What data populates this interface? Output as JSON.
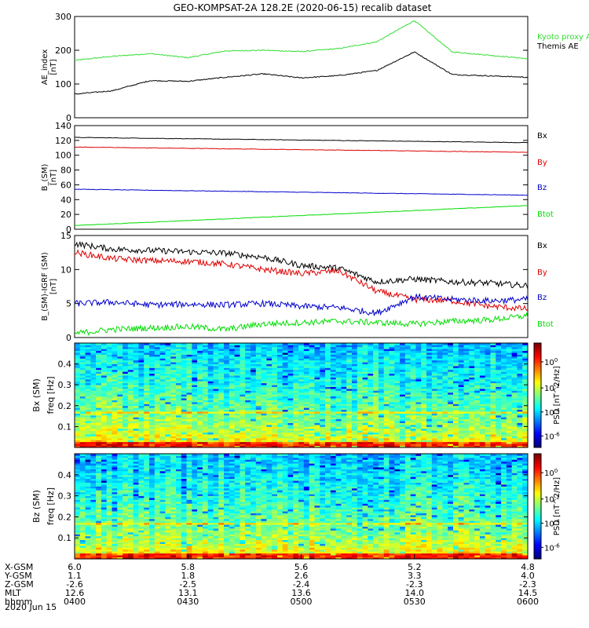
{
  "figure": {
    "title": "GEO-KOMPSAT-2A 128.2E (2020-06-15) recalib dataset",
    "date_label": "2020 Jun 15"
  },
  "colors": {
    "black": "#000000",
    "red": "#dd0000",
    "green": "#00dd00",
    "blue": "#0000cc",
    "ae_green": "#33dd33"
  },
  "chart_data": [
    {
      "type": "line",
      "panel": "ae",
      "ylabel": "AE_index",
      "yunit": "[nT]",
      "ylim": [
        0,
        300
      ],
      "yticks": [
        0,
        100,
        200,
        300
      ],
      "x": [
        "0400",
        "0410",
        "0420",
        "0430",
        "0440",
        "0450",
        "0500",
        "0510",
        "0520",
        "0530",
        "0540",
        "0550",
        "0600"
      ],
      "series": [
        {
          "name": "Kyoto proxy AE",
          "color_key": "ae_green",
          "values": [
            170,
            182,
            190,
            178,
            198,
            200,
            196,
            205,
            225,
            288,
            195,
            185,
            175
          ]
        },
        {
          "name": "Themis AE",
          "color_key": "black",
          "values": [
            70,
            80,
            110,
            108,
            120,
            130,
            118,
            125,
            140,
            195,
            128,
            124,
            120
          ]
        }
      ]
    },
    {
      "type": "line",
      "panel": "b_sm",
      "ylabel": "B_(SM)",
      "yunit": "[nT]",
      "ylim": [
        0,
        140
      ],
      "yticks": [
        0,
        20,
        40,
        60,
        80,
        100,
        120,
        140
      ],
      "x": [
        "0400",
        "0600"
      ],
      "series": [
        {
          "name": "Bx",
          "color_key": "black",
          "values": [
            124,
            117
          ]
        },
        {
          "name": "By",
          "color_key": "red",
          "values": [
            111,
            104
          ]
        },
        {
          "name": "Bz",
          "color_key": "blue",
          "values": [
            54,
            46
          ]
        },
        {
          "name": "Btot",
          "color_key": "green",
          "values": [
            5,
            32
          ]
        }
      ]
    },
    {
      "type": "line",
      "panel": "b_igrf",
      "ylabel": "B_(SM)-IGRF (SM)",
      "yunit": "[nT]",
      "ylim": [
        0,
        15
      ],
      "yticks": [
        0,
        5,
        10,
        15
      ],
      "x": [
        "0400",
        "0410",
        "0420",
        "0430",
        "0440",
        "0450",
        "0500",
        "0510",
        "0520",
        "0530",
        "0540",
        "0550",
        "0600"
      ],
      "series": [
        {
          "name": "Bx",
          "color_key": "black",
          "values": [
            13.8,
            13.0,
            12.8,
            12.6,
            12.4,
            11.8,
            10.6,
            10.2,
            8.2,
            8.6,
            8.2,
            8.0,
            7.6
          ]
        },
        {
          "name": "By",
          "color_key": "red",
          "values": [
            12.5,
            11.6,
            11.3,
            11.2,
            10.8,
            10.0,
            9.4,
            9.8,
            6.8,
            5.6,
            5.4,
            4.6,
            4.2
          ]
        },
        {
          "name": "Bz",
          "color_key": "blue",
          "values": [
            5.0,
            5.2,
            4.8,
            4.9,
            4.8,
            5.0,
            4.6,
            4.4,
            3.6,
            6.0,
            5.6,
            5.4,
            5.6
          ]
        },
        {
          "name": "Btot",
          "color_key": "green",
          "values": [
            0.6,
            1.2,
            1.4,
            1.6,
            1.2,
            2.0,
            2.2,
            2.4,
            2.2,
            2.0,
            2.4,
            2.6,
            3.2
          ]
        }
      ]
    },
    {
      "type": "heatmap",
      "panel": "spec_bx",
      "ylabel": "Bx (SM)",
      "yunit": "freq [Hz]",
      "ylim": [
        0,
        0.5
      ],
      "yticks": [
        0.1,
        0.2,
        0.3,
        0.4
      ],
      "colorbar_label": "PSD [nT^2/Hz]",
      "colorbar_ticks": [
        "10^0",
        "10^-2",
        "10^-4",
        "10^-6"
      ]
    },
    {
      "type": "heatmap",
      "panel": "spec_bz",
      "ylabel": "Bz (SM)",
      "yunit": "freq [Hz]",
      "ylim": [
        0,
        0.5
      ],
      "yticks": [
        0.1,
        0.2,
        0.3,
        0.4
      ],
      "colorbar_label": "PSD [nT^2/Hz]",
      "colorbar_ticks": [
        "10^0",
        "10^-2",
        "10^-4",
        "10^-6"
      ]
    }
  ],
  "ephemeris": {
    "rows": [
      {
        "label": "X-GSM",
        "values": [
          "6.0",
          "5.8",
          "5.6",
          "5.2",
          "4.8"
        ]
      },
      {
        "label": "Y-GSM",
        "values": [
          "1.1",
          "1.8",
          "2.6",
          "3.3",
          "4.0"
        ]
      },
      {
        "label": "Z-GSM",
        "values": [
          "-2.6",
          "-2.5",
          "-2.4",
          "-2.3",
          "-2.3"
        ]
      },
      {
        "label": "MLT",
        "values": [
          "12.6",
          "13.1",
          "13.6",
          "14.0",
          "14.5"
        ]
      },
      {
        "label": "hhmm",
        "values": [
          "0400",
          "0430",
          "0500",
          "0530",
          "0600"
        ]
      }
    ]
  }
}
